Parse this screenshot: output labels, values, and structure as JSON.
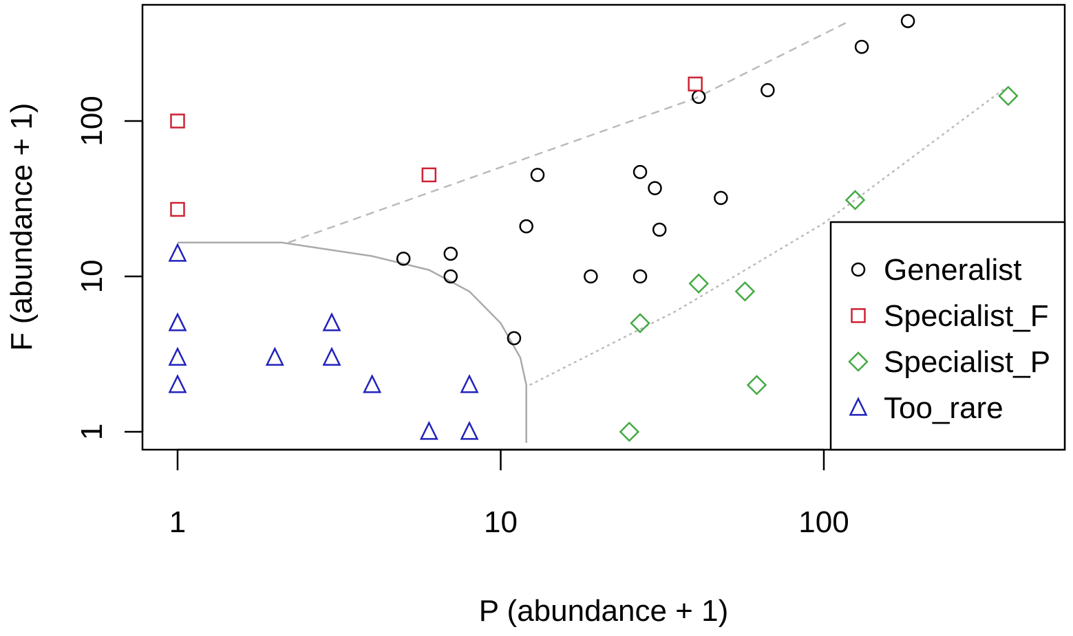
{
  "chart_data": {
    "type": "scatter",
    "title": "",
    "xlabel": "P (abundance + 1)",
    "ylabel": "F (abundance + 1)",
    "x_scale": "log",
    "y_scale": "log",
    "xlim": [
      0.9,
      600
    ],
    "ylim": [
      0.85,
      600
    ],
    "x_ticks": [
      1,
      10,
      100
    ],
    "x_tick_labels": [
      "1",
      "10",
      "100"
    ],
    "y_ticks": [
      1,
      10,
      100
    ],
    "y_tick_labels": [
      "1",
      "10",
      "100"
    ],
    "grid": false,
    "legend_position": "right",
    "series": [
      {
        "name": "Generalist",
        "marker": "circle",
        "color": "#000000",
        "points": [
          {
            "x": 5,
            "y": 13
          },
          {
            "x": 7,
            "y": 14
          },
          {
            "x": 7,
            "y": 10
          },
          {
            "x": 11,
            "y": 4
          },
          {
            "x": 12,
            "y": 21
          },
          {
            "x": 13,
            "y": 45
          },
          {
            "x": 19,
            "y": 10
          },
          {
            "x": 27,
            "y": 10
          },
          {
            "x": 27,
            "y": 47
          },
          {
            "x": 30,
            "y": 37
          },
          {
            "x": 31,
            "y": 20
          },
          {
            "x": 41,
            "y": 143
          },
          {
            "x": 48,
            "y": 32
          },
          {
            "x": 67,
            "y": 158
          },
          {
            "x": 131,
            "y": 300
          },
          {
            "x": 182,
            "y": 440
          }
        ]
      },
      {
        "name": "Specialist_F",
        "marker": "square",
        "color": "#cc2233",
        "points": [
          {
            "x": 1,
            "y": 100
          },
          {
            "x": 1,
            "y": 27
          },
          {
            "x": 6,
            "y": 45
          },
          {
            "x": 40,
            "y": 173
          }
        ]
      },
      {
        "name": "Specialist_P",
        "marker": "diamond",
        "color": "#44aa44",
        "points": [
          {
            "x": 25,
            "y": 1
          },
          {
            "x": 27,
            "y": 5
          },
          {
            "x": 41,
            "y": 9
          },
          {
            "x": 57,
            "y": 8
          },
          {
            "x": 62,
            "y": 2
          },
          {
            "x": 125,
            "y": 31
          },
          {
            "x": 372,
            "y": 145
          }
        ]
      },
      {
        "name": "Too_rare",
        "marker": "triangle",
        "color": "#2222bb",
        "points": [
          {
            "x": 1,
            "y": 14
          },
          {
            "x": 1,
            "y": 5
          },
          {
            "x": 1,
            "y": 3
          },
          {
            "x": 1,
            "y": 2
          },
          {
            "x": 2,
            "y": 3
          },
          {
            "x": 3,
            "y": 5
          },
          {
            "x": 3,
            "y": 3
          },
          {
            "x": 4,
            "y": 2
          },
          {
            "x": 6,
            "y": 1
          },
          {
            "x": 8,
            "y": 1
          },
          {
            "x": 8,
            "y": 2
          }
        ]
      }
    ],
    "curves": [
      {
        "style": "solid",
        "color": "#aaaaaa",
        "points": [
          [
            1,
            16.5
          ],
          [
            2.1,
            16.5
          ],
          [
            4,
            13.5
          ],
          [
            6,
            11
          ],
          [
            8,
            8
          ],
          [
            10,
            5
          ],
          [
            11.5,
            3
          ],
          [
            12,
            2
          ],
          [
            12,
            0.85
          ]
        ]
      },
      {
        "style": "dashed",
        "color": "#bbbbbb",
        "points": [
          [
            2.2,
            16.5
          ],
          [
            40,
            140
          ],
          [
            120,
            440
          ]
        ]
      },
      {
        "style": "dotted",
        "color": "#bbbbbb",
        "points": [
          [
            12.3,
            2
          ],
          [
            35,
            6
          ],
          [
            100,
            22
          ],
          [
            360,
            160
          ]
        ]
      }
    ]
  }
}
